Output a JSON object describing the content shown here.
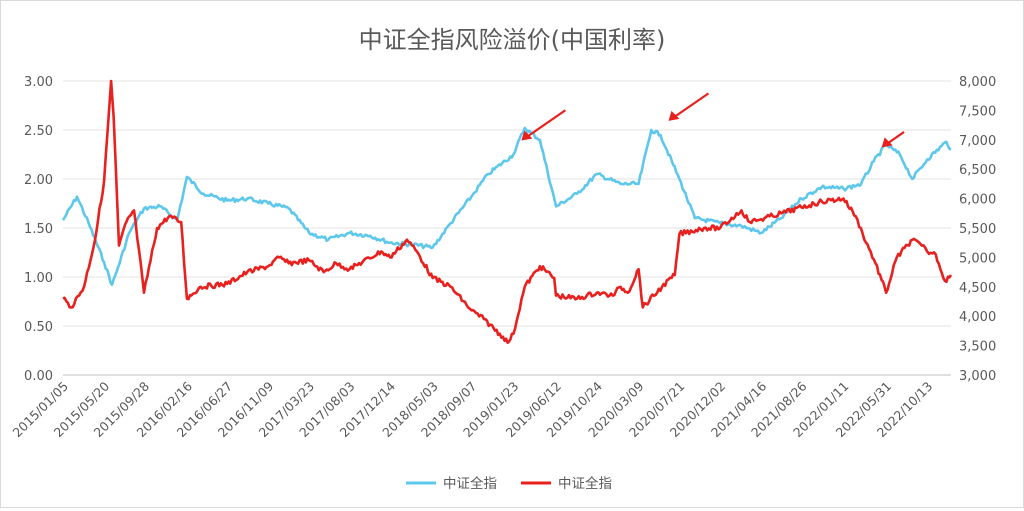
{
  "chart_data": {
    "type": "line",
    "title": "中证全指风险溢价(中国利率)",
    "y_left_ticks": [
      "0.00",
      "0.50",
      "1.00",
      "1.50",
      "2.00",
      "2.50",
      "3.00"
    ],
    "y_left_range": [
      0,
      3
    ],
    "y_right_ticks": [
      "3,000",
      "3,500",
      "4,000",
      "4,500",
      "5,000",
      "5,500",
      "6,000",
      "6,500",
      "7,000",
      "7,500",
      "8,000"
    ],
    "y_right_range": [
      3000,
      8000
    ],
    "x_tick_labels": [
      "2015/01/05",
      "2015/05/20",
      "2015/09/28",
      "2016/02/16",
      "2016/06/27",
      "2016/11/09",
      "2017/03/23",
      "2017/08/03",
      "2017/12/14",
      "2018/05/03",
      "2018/09/07",
      "2019/01/23",
      "2019/06/12",
      "2019/10/24",
      "2020/03/09",
      "2020/07/21",
      "2020/12/02",
      "2021/04/16",
      "2021/08/26",
      "2022/01/11",
      "2022/05/31",
      "2022/10/13"
    ],
    "legend_position": "bottom",
    "grid": "horizontal",
    "series": [
      {
        "name": "中证全指",
        "axis": "left",
        "color": "#5ec8ec",
        "x": [
          "2015/01/05",
          "2015/02/20",
          "2015/03/30",
          "2015/05/20",
          "2015/06/15",
          "2015/07/05",
          "2015/08/10",
          "2015/09/28",
          "2015/11/20",
          "2016/01/15",
          "2016/02/16",
          "2016/04/10",
          "2016/06/27",
          "2016/09/01",
          "2016/11/09",
          "2017/01/15",
          "2017/03/23",
          "2017/05/25",
          "2017/08/03",
          "2017/10/10",
          "2017/12/14",
          "2018/03/01",
          "2018/05/03",
          "2018/07/01",
          "2018/09/07",
          "2018/11/01",
          "2019/01/23",
          "2019/03/01",
          "2019/04/20",
          "2019/06/12",
          "2019/08/20",
          "2019/10/24",
          "2020/01/10",
          "2020/03/09",
          "2020/04/20",
          "2020/05/20",
          "2020/07/21",
          "2020/09/10",
          "2020/12/02",
          "2021/02/10",
          "2021/04/16",
          "2021/06/20",
          "2021/08/26",
          "2021/11/01",
          "2022/01/11",
          "2022/03/10",
          "2022/04/20",
          "2022/05/31",
          "2022/07/15",
          "2022/08/25",
          "2022/10/13",
          "2022/12/15",
          "2022/12/30"
        ],
        "values": [
          1.58,
          1.82,
          1.55,
          1.15,
          0.92,
          1.1,
          1.45,
          1.7,
          1.72,
          1.58,
          2.02,
          1.85,
          1.78,
          1.8,
          1.75,
          1.7,
          1.45,
          1.38,
          1.45,
          1.42,
          1.35,
          1.33,
          1.3,
          1.55,
          1.82,
          2.05,
          2.25,
          2.52,
          2.4,
          1.72,
          1.85,
          2.05,
          1.95,
          1.95,
          2.5,
          2.45,
          2.0,
          1.6,
          1.55,
          1.52,
          1.45,
          1.6,
          1.8,
          1.92,
          1.9,
          1.95,
          2.18,
          2.35,
          2.25,
          2.0,
          2.2,
          2.38,
          2.3
        ]
      },
      {
        "name": "中证全指",
        "axis": "right",
        "color": "#e8201e",
        "x": [
          "2015/01/05",
          "2015/02/01",
          "2015/03/15",
          "2015/04/20",
          "2015/05/20",
          "2015/06/12",
          "2015/06/20",
          "2015/07/08",
          "2015/08/01",
          "2015/08/26",
          "2015/09/28",
          "2015/11/10",
          "2015/12/20",
          "2016/01/28",
          "2016/02/16",
          "2016/04/01",
          "2016/06/27",
          "2016/09/01",
          "2016/11/09",
          "2016/12/15",
          "2017/01/15",
          "2017/03/23",
          "2017/05/10",
          "2017/06/20",
          "2017/08/03",
          "2017/11/15",
          "2017/12/14",
          "2018/02/08",
          "2018/03/12",
          "2018/05/03",
          "2018/07/01",
          "2018/09/07",
          "2018/10/18",
          "2018/12/20",
          "2019/01/04",
          "2019/01/23",
          "2019/03/01",
          "2019/04/20",
          "2019/06/06",
          "2019/06/12",
          "2019/08/20",
          "2019/10/24",
          "2019/12/15",
          "2020/01/10",
          "2020/02/03",
          "2020/03/09",
          "2020/03/23",
          "2020/05/25",
          "2020/07/06",
          "2020/07/21",
          "2020/10/10",
          "2020/12/02",
          "2021/02/10",
          "2021/03/09",
          "2021/04/16",
          "2021/06/20",
          "2021/08/26",
          "2021/11/01",
          "2022/01/11",
          "2022/02/20",
          "2022/03/15",
          "2022/04/26",
          "2022/05/31",
          "2022/07/05",
          "2022/08/25",
          "2022/09/25",
          "2022/10/13",
          "2022/11/10",
          "2022/12/10",
          "2022/12/30"
        ],
        "values": [
          4300,
          4150,
          4500,
          5300,
          6300,
          8000,
          7400,
          5200,
          5600,
          5800,
          4400,
          5500,
          5700,
          5600,
          4300,
          4500,
          4550,
          4750,
          4850,
          5000,
          4900,
          4950,
          4750,
          4900,
          4800,
          5100,
          5000,
          5300,
          5100,
          4650,
          4500,
          4100,
          3950,
          3650,
          3550,
          3700,
          4500,
          4850,
          4650,
          4350,
          4300,
          4400,
          4350,
          4500,
          4400,
          4800,
          4150,
          4500,
          4700,
          5400,
          5500,
          5500,
          5800,
          5600,
          5650,
          5750,
          5850,
          5950,
          6000,
          5700,
          5400,
          4900,
          4400,
          5000,
          5300,
          5200,
          5100,
          5050,
          4600,
          4700
        ]
      }
    ],
    "annotations": [
      {
        "type": "arrow",
        "points_to": "2019/01/23"
      },
      {
        "type": "arrow",
        "points_to": "2020/05/20"
      },
      {
        "type": "arrow",
        "points_to": "2022/04/20"
      }
    ]
  }
}
